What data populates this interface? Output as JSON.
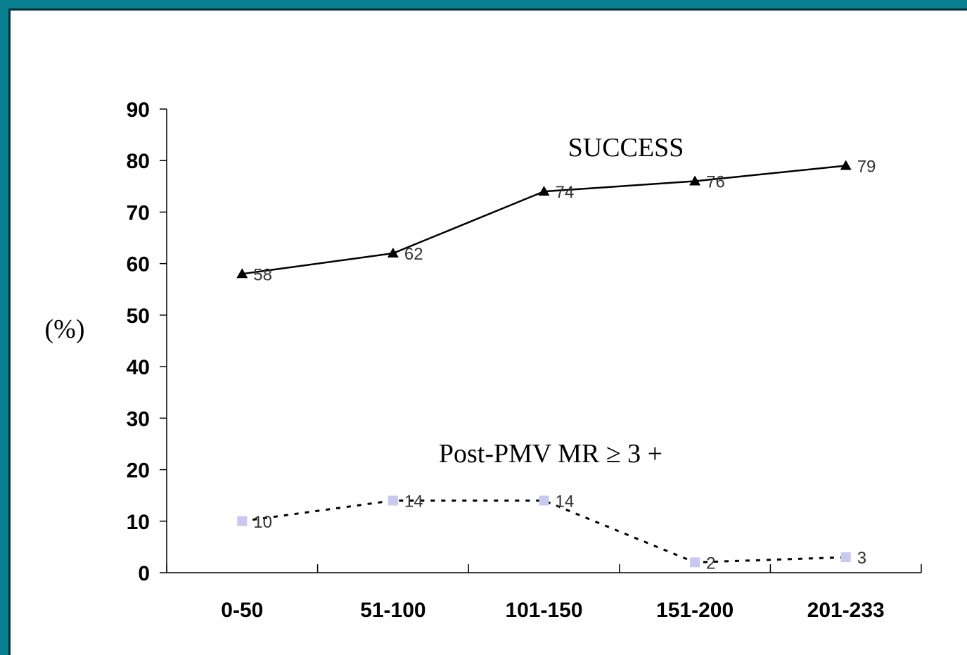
{
  "chart_data": {
    "type": "line",
    "categories": [
      "0-50",
      "51-100",
      "101-150",
      "151-200",
      "201-233"
    ],
    "ylabel": "(%)",
    "ylim": [
      0,
      90
    ],
    "yticks": [
      0,
      10,
      20,
      30,
      40,
      50,
      60,
      70,
      80,
      90
    ],
    "grid": false,
    "series": [
      {
        "name": "SUCCESS",
        "values": [
          58,
          62,
          74,
          76,
          79
        ],
        "labels": [
          "58",
          "62",
          "74",
          "76",
          "79"
        ],
        "color": "#000000",
        "style": "solid",
        "marker": "triangle"
      },
      {
        "name": "Post-PMV MR ≥ 3 +",
        "values": [
          10,
          14,
          14,
          2,
          3
        ],
        "labels": [
          "10",
          "14",
          "14",
          "2",
          "3"
        ],
        "color": "#000000",
        "marker_color": "#c8c8f0",
        "style": "dotted",
        "marker": "square"
      }
    ]
  },
  "colors": {
    "frame": "#0a7f8f",
    "background": "#ffffff"
  }
}
